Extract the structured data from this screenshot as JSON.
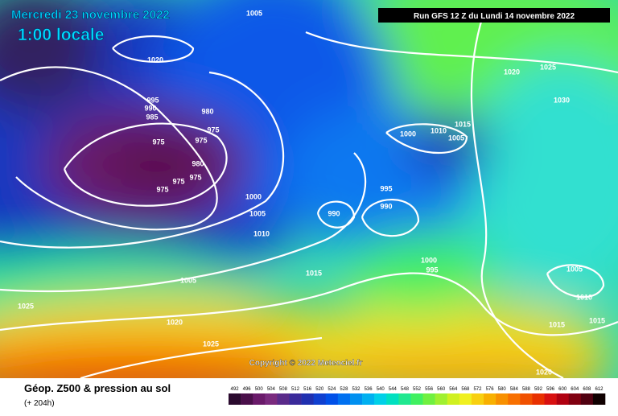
{
  "header": {
    "title": "Mercredi 23 novembre 2022",
    "time": "1:00 locale",
    "run": "Run GFS 12 Z du Lundi 14 novembre 2022"
  },
  "copyright": "Copyright © 2022 Meteociel.fr",
  "footer": {
    "title": "Géop. Z500 & pression au sol",
    "lead": "(+ 204h)"
  },
  "colorbar": {
    "values": [
      492,
      496,
      500,
      504,
      508,
      512,
      516,
      520,
      524,
      528,
      532,
      536,
      540,
      544,
      548,
      552,
      556,
      560,
      564,
      568,
      572,
      576,
      580,
      584,
      588,
      592,
      596,
      600,
      604,
      608,
      612
    ],
    "colors": [
      "#2a0a2e",
      "#4a0f4a",
      "#6a1a6a",
      "#7a2a7e",
      "#5a2a8a",
      "#3a2a9a",
      "#2030b0",
      "#1040d0",
      "#0050e8",
      "#0070f0",
      "#0090f0",
      "#00b0f0",
      "#00d0e8",
      "#00e0c0",
      "#20e890",
      "#40f060",
      "#70f040",
      "#a0f030",
      "#d0f020",
      "#f0f020",
      "#f8d010",
      "#f8b000",
      "#f89000",
      "#f87000",
      "#f05000",
      "#e83000",
      "#d81010",
      "#b00010",
      "#800010",
      "#500010",
      "#100000"
    ]
  },
  "isobars": [
    1005,
    1020,
    995,
    990,
    985,
    980,
    975,
    975,
    975,
    980,
    975,
    975,
    975,
    1000,
    1005,
    1010,
    1015,
    1005,
    1025,
    1020,
    1025,
    995,
    990,
    990,
    1000,
    1010,
    1015,
    1005,
    1020,
    1025,
    1030,
    1000,
    995,
    1005,
    1010,
    1015,
    1015,
    1020
  ]
}
